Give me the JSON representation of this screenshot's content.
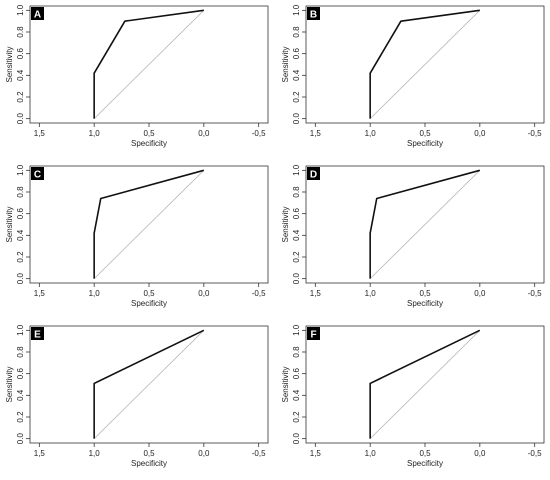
{
  "chart_data": [
    {
      "type": "line",
      "panel": "A",
      "xlabel": "Specificity",
      "ylabel": "Sensitivity",
      "xlim": [
        1.5,
        -0.5
      ],
      "ylim": [
        0,
        1
      ],
      "x_ticks": [
        "1,5",
        "1,0",
        "0,5",
        "0,0",
        "-0,5"
      ],
      "y_ticks": [
        "0.0",
        "0.2",
        "0.4",
        "0.6",
        "0.8",
        "1.0"
      ],
      "reference_line": [
        [
          1,
          0
        ],
        [
          0,
          1
        ]
      ],
      "series": [
        {
          "x": [
            1.0,
            1.0,
            0.72,
            0.0
          ],
          "y": [
            0.0,
            0.42,
            0.9,
            1.0
          ]
        }
      ]
    },
    {
      "type": "line",
      "panel": "B",
      "xlabel": "Specificity",
      "ylabel": "Sensitivity",
      "xlim": [
        1.5,
        -0.5
      ],
      "ylim": [
        0,
        1
      ],
      "x_ticks": [
        "1,5",
        "1,0",
        "0,5",
        "0,0",
        "-0,5"
      ],
      "y_ticks": [
        "0.0",
        "0.2",
        "0.4",
        "0.6",
        "0.8",
        "1.0"
      ],
      "reference_line": [
        [
          1,
          0
        ],
        [
          0,
          1
        ]
      ],
      "series": [
        {
          "x": [
            1.0,
            1.0,
            0.72,
            0.0
          ],
          "y": [
            0.0,
            0.42,
            0.9,
            1.0
          ]
        }
      ]
    },
    {
      "type": "line",
      "panel": "C",
      "xlabel": "Specificity",
      "ylabel": "Sensitivity",
      "xlim": [
        1.5,
        -0.5
      ],
      "ylim": [
        0,
        1
      ],
      "x_ticks": [
        "1,5",
        "1,0",
        "0,5",
        "0,0",
        "-0,5"
      ],
      "y_ticks": [
        "0.0",
        "0.2",
        "0.4",
        "0.6",
        "0.8",
        "1.0"
      ],
      "reference_line": [
        [
          1,
          0
        ],
        [
          0,
          1
        ]
      ],
      "series": [
        {
          "x": [
            1.0,
            1.0,
            0.94,
            0.0
          ],
          "y": [
            0.0,
            0.42,
            0.74,
            1.0
          ]
        }
      ]
    },
    {
      "type": "line",
      "panel": "D",
      "xlabel": "Specificity",
      "ylabel": "Sensitivity",
      "xlim": [
        1.5,
        -0.5
      ],
      "ylim": [
        0,
        1
      ],
      "x_ticks": [
        "1,5",
        "1,0",
        "0,5",
        "0,0",
        "-0,5"
      ],
      "y_ticks": [
        "0.0",
        "0.2",
        "0.4",
        "0.6",
        "0.8",
        "1.0"
      ],
      "reference_line": [
        [
          1,
          0
        ],
        [
          0,
          1
        ]
      ],
      "series": [
        {
          "x": [
            1.0,
            1.0,
            0.94,
            0.0
          ],
          "y": [
            0.0,
            0.42,
            0.74,
            1.0
          ]
        }
      ]
    },
    {
      "type": "line",
      "panel": "E",
      "xlabel": "Specificity",
      "ylabel": "Sensitivity",
      "xlim": [
        1.5,
        -0.5
      ],
      "ylim": [
        0,
        1
      ],
      "x_ticks": [
        "1,5",
        "1,0",
        "0,5",
        "0,0",
        "-0,5"
      ],
      "y_ticks": [
        "0.0",
        "0.2",
        "0.4",
        "0.6",
        "0.8",
        "1.0"
      ],
      "reference_line": [
        [
          1,
          0
        ],
        [
          0,
          1
        ]
      ],
      "series": [
        {
          "x": [
            1.0,
            1.0,
            0.0
          ],
          "y": [
            0.0,
            0.51,
            1.0
          ]
        }
      ]
    },
    {
      "type": "line",
      "panel": "F",
      "xlabel": "Specificity",
      "ylabel": "Sensitivity",
      "xlim": [
        1.5,
        -0.5
      ],
      "ylim": [
        0,
        1
      ],
      "x_ticks": [
        "1,5",
        "1,0",
        "0,5",
        "0,0",
        "-0,5"
      ],
      "y_ticks": [
        "0.0",
        "0.2",
        "0.4",
        "0.6",
        "0.8",
        "1.0"
      ],
      "reference_line": [
        [
          1,
          0
        ],
        [
          0,
          1
        ]
      ],
      "series": [
        {
          "x": [
            1.0,
            1.0,
            0.0
          ],
          "y": [
            0.0,
            0.51,
            1.0
          ]
        }
      ]
    }
  ]
}
